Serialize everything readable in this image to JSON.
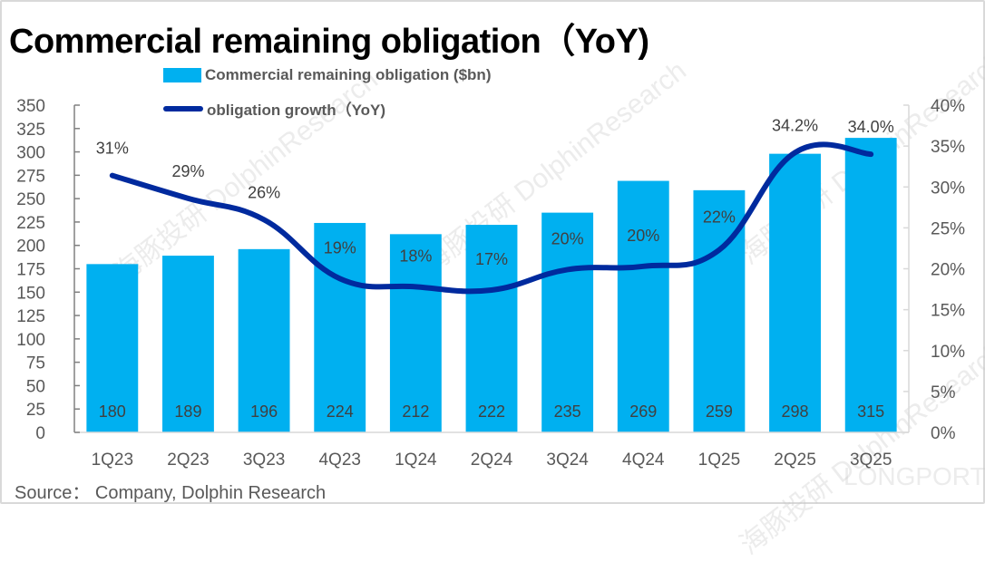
{
  "title": "Commercial remaining obligation（YoY)",
  "source": "Source： Company, Dolphin Research",
  "watermark_text": "海豚投研 DolphinResearch",
  "watermark_brand": "LONGPORT",
  "colors": {
    "bar": "#00B0F0",
    "line": "#002A9E",
    "axis_text": "#595959",
    "label_text": "#404040"
  },
  "chart_data": {
    "type": "bar",
    "title": "Commercial remaining obligation（YoY)",
    "categories": [
      "1Q23",
      "2Q23",
      "3Q23",
      "4Q23",
      "1Q24",
      "2Q24",
      "3Q24",
      "4Q24",
      "1Q25",
      "2Q25",
      "3Q25"
    ],
    "series": [
      {
        "name": "Commercial remaining obligation ($bn)",
        "type": "bar",
        "axis": "left",
        "values": [
          180,
          189,
          196,
          224,
          212,
          222,
          235,
          269,
          259,
          298,
          315
        ],
        "labels": [
          "180",
          "189",
          "196",
          "224",
          "212",
          "222",
          "235",
          "269",
          "259",
          "298",
          "315"
        ]
      },
      {
        "name": "obligation growth（YoY)",
        "type": "line",
        "axis": "right",
        "smooth": true,
        "values": [
          31.4,
          28.6,
          26.0,
          18.8,
          17.8,
          17.4,
          19.9,
          20.3,
          22.3,
          34.2,
          34.0
        ],
        "labels": [
          "31%",
          "29%",
          "26%",
          "19%",
          "18%",
          "17%",
          "20%",
          "20%",
          "22%",
          "34.2%",
          "34.0%"
        ]
      }
    ],
    "y_left": {
      "min": 0,
      "max": 350,
      "step": 25,
      "ticks": [
        "0",
        "25",
        "50",
        "75",
        "100",
        "125",
        "150",
        "175",
        "200",
        "225",
        "250",
        "275",
        "300",
        "325",
        "350"
      ]
    },
    "y_right": {
      "min": 0,
      "max": 40,
      "step": 5,
      "ticks": [
        "0%",
        "5%",
        "10%",
        "15%",
        "20%",
        "25%",
        "30%",
        "35%",
        "40%"
      ]
    },
    "xlabel": "",
    "ylabel": "",
    "grid": false,
    "legend": {
      "placement": "top-center",
      "entries": [
        "Commercial remaining obligation ($bn)",
        "obligation growth（YoY)"
      ]
    }
  }
}
